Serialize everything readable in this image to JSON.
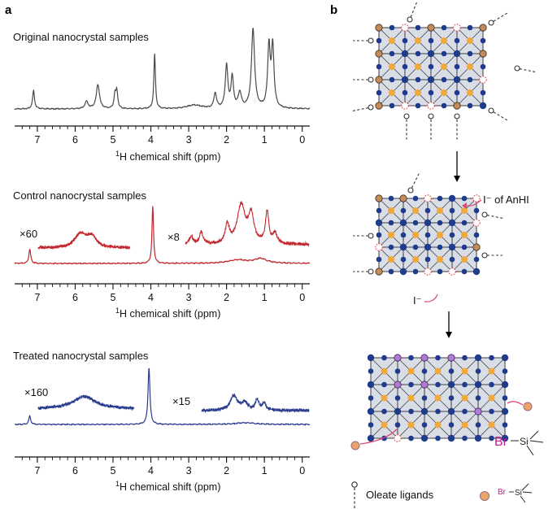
{
  "panel_a_label": "a",
  "panel_b_label": "b",
  "colors": {
    "original": "#4a4a4a",
    "control": "#c1272d",
    "treated": "#2a3d8f",
    "lattice_node": "#1f3b8c",
    "lattice_center": "#f2a93b",
    "arrow_pink": "#e0457b"
  },
  "chart_data": [
    {
      "type": "line",
      "title": "Original nanocrystal samples",
      "xlabel_sup": "1",
      "xlabel": "H chemical shift (ppm)",
      "xlim": [
        7.6,
        -0.2
      ],
      "x_ticks": [
        7,
        6,
        5,
        4,
        3,
        2,
        1,
        0
      ],
      "x_tick_labels": [
        "7",
        "6",
        "5",
        "4",
        "3",
        "2",
        "1",
        "0"
      ],
      "series": [
        {
          "name": "Original nanocrystal samples",
          "peaks": [
            {
              "ppm": 7.1,
              "height": 0.3,
              "width": 0.03
            },
            {
              "ppm": 5.7,
              "height": 0.12,
              "width": 0.05
            },
            {
              "ppm": 5.4,
              "height": 0.4,
              "width": 0.05
            },
            {
              "ppm": 4.95,
              "height": 0.22,
              "width": 0.03
            },
            {
              "ppm": 4.9,
              "height": 0.28,
              "width": 0.03
            },
            {
              "ppm": 3.9,
              "height": 0.9,
              "width": 0.025
            },
            {
              "ppm": 2.85,
              "height": 0.06,
              "width": 0.25
            },
            {
              "ppm": 2.3,
              "height": 0.25,
              "width": 0.04
            },
            {
              "ppm": 2.0,
              "height": 0.7,
              "width": 0.04
            },
            {
              "ppm": 1.85,
              "height": 0.5,
              "width": 0.04
            },
            {
              "ppm": 1.65,
              "height": 0.25,
              "width": 0.05
            },
            {
              "ppm": 1.3,
              "height": 1.3,
              "width": 0.05
            },
            {
              "ppm": 0.88,
              "height": 1.0,
              "width": 0.04
            },
            {
              "ppm": 0.78,
              "height": 1.0,
              "width": 0.04
            }
          ]
        }
      ]
    },
    {
      "type": "line",
      "title": "Control nanocrystal samples",
      "xlabel_sup": "1",
      "xlabel": "H chemical shift (ppm)",
      "xlim": [
        7.6,
        -0.2
      ],
      "x_ticks": [
        7,
        6,
        5,
        4,
        3,
        2,
        1,
        0
      ],
      "x_tick_labels": [
        "7",
        "6",
        "5",
        "4",
        "3",
        "2",
        "1",
        "0"
      ],
      "annotations": [
        "×60",
        "×8"
      ],
      "series": [
        {
          "name": "Control nanocrystal samples",
          "peaks": [
            {
              "ppm": 7.2,
              "height": 0.25,
              "width": 0.03
            },
            {
              "ppm": 3.95,
              "height": 1.0,
              "width": 0.025
            },
            {
              "ppm": 1.1,
              "height": 0.08,
              "width": 0.2
            },
            {
              "ppm": 1.7,
              "height": 0.06,
              "width": 0.3
            }
          ]
        },
        {
          "name": "Control ×60 inset (7.0–4.5 ppm)",
          "range": [
            7.0,
            4.5
          ],
          "peaks": [
            {
              "ppm": 5.85,
              "height": 0.55,
              "width": 0.18
            },
            {
              "ppm": 5.55,
              "height": 0.45,
              "width": 0.15
            }
          ]
        },
        {
          "name": "Control ×8 inset (3.1–0 ppm)",
          "range": [
            3.1,
            0.0
          ],
          "peaks": [
            {
              "ppm": 2.95,
              "height": 0.2,
              "width": 0.05
            },
            {
              "ppm": 2.7,
              "height": 0.3,
              "width": 0.05
            },
            {
              "ppm": 2.05,
              "height": 0.45,
              "width": 0.06
            },
            {
              "ppm": 1.7,
              "height": 0.95,
              "width": 0.12
            },
            {
              "ppm": 1.45,
              "height": 0.7,
              "width": 0.08
            },
            {
              "ppm": 1.05,
              "height": 0.8,
              "width": 0.05
            },
            {
              "ppm": 0.85,
              "height": 0.25,
              "width": 0.06
            }
          ]
        }
      ]
    },
    {
      "type": "line",
      "title": "Treated nanocrystal samples",
      "xlabel_sup": "1",
      "xlabel": "H chemical shift (ppm)",
      "xlim": [
        7.6,
        -0.2
      ],
      "x_ticks": [
        7,
        6,
        5,
        4,
        3,
        2,
        1,
        0
      ],
      "x_tick_labels": [
        "7",
        "6",
        "5",
        "4",
        "3",
        "2",
        "1",
        "0"
      ],
      "annotations": [
        "×160",
        "×15"
      ],
      "series": [
        {
          "name": "Treated nanocrystal samples",
          "peaks": [
            {
              "ppm": 7.2,
              "height": 0.15,
              "width": 0.03
            },
            {
              "ppm": 4.05,
              "height": 1.0,
              "width": 0.03
            },
            {
              "ppm": 1.5,
              "height": 0.03,
              "width": 0.3
            }
          ]
        },
        {
          "name": "Treated ×160 inset (7.0–4.5 ppm)",
          "range": [
            7.0,
            4.5
          ],
          "peaks": [
            {
              "ppm": 5.8,
              "height": 0.55,
              "width": 0.35
            }
          ]
        },
        {
          "name": "Treated ×15 inset (3.0–0 ppm)",
          "range": [
            3.0,
            0.0
          ],
          "peaks": [
            {
              "ppm": 2.1,
              "height": 0.8,
              "width": 0.12
            },
            {
              "ppm": 1.8,
              "height": 0.4,
              "width": 0.1
            },
            {
              "ppm": 1.45,
              "height": 0.55,
              "width": 0.06
            },
            {
              "ppm": 1.25,
              "height": 0.4,
              "width": 0.06
            }
          ]
        }
      ]
    }
  ],
  "schematic": {
    "label_iodide_anhi": "I⁻ of AnHI",
    "label_iodide": "I⁻",
    "label_br_si": "Br",
    "label_si": "Si",
    "legend_oleate": "Oleate ligands",
    "legend_br": "Br",
    "legend_si": "Si"
  }
}
